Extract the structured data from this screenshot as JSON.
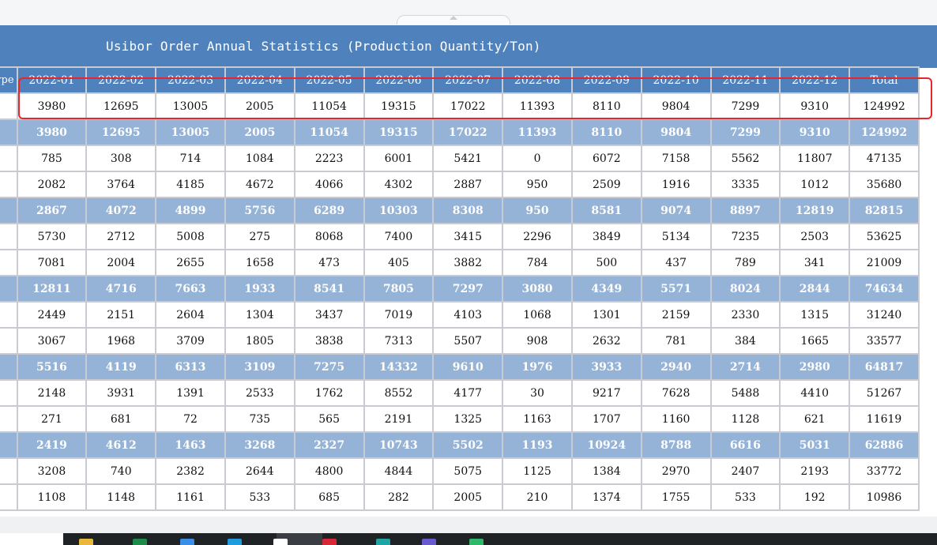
{
  "report": {
    "title": "Usibor Order Annual Statistics (Production Quantity/Ton)",
    "type_header": "Type",
    "months": [
      "2022-01",
      "2022-02",
      "2022-03",
      "2022-04",
      "2022-05",
      "2022-06",
      "2022-07",
      "2022-08",
      "2022-09",
      "2022-10",
      "2022-11",
      "2022-12"
    ],
    "total_header": "Total",
    "rows": [
      {
        "kind": "plain",
        "cells": [
          "3980",
          "12695",
          "13005",
          "2005",
          "11054",
          "19315",
          "17022",
          "11393",
          "8110",
          "9804",
          "7299",
          "9310",
          "124992"
        ]
      },
      {
        "kind": "sub",
        "cells": [
          "3980",
          "12695",
          "13005",
          "2005",
          "11054",
          "19315",
          "17022",
          "11393",
          "8110",
          "9804",
          "7299",
          "9310",
          "124992"
        ]
      },
      {
        "kind": "plain",
        "cells": [
          "785",
          "308",
          "714",
          "1084",
          "2223",
          "6001",
          "5421",
          "0",
          "6072",
          "7158",
          "5562",
          "11807",
          "47135"
        ]
      },
      {
        "kind": "plain",
        "cells": [
          "2082",
          "3764",
          "4185",
          "4672",
          "4066",
          "4302",
          "2887",
          "950",
          "2509",
          "1916",
          "3335",
          "1012",
          "35680"
        ]
      },
      {
        "kind": "sub",
        "cells": [
          "2867",
          "4072",
          "4899",
          "5756",
          "6289",
          "10303",
          "8308",
          "950",
          "8581",
          "9074",
          "8897",
          "12819",
          "82815"
        ]
      },
      {
        "kind": "plain",
        "cells": [
          "5730",
          "2712",
          "5008",
          "275",
          "8068",
          "7400",
          "3415",
          "2296",
          "3849",
          "5134",
          "7235",
          "2503",
          "53625"
        ]
      },
      {
        "kind": "plain",
        "cells": [
          "7081",
          "2004",
          "2655",
          "1658",
          "473",
          "405",
          "3882",
          "784",
          "500",
          "437",
          "789",
          "341",
          "21009"
        ]
      },
      {
        "kind": "sub",
        "cells": [
          "12811",
          "4716",
          "7663",
          "1933",
          "8541",
          "7805",
          "7297",
          "3080",
          "4349",
          "5571",
          "8024",
          "2844",
          "74634"
        ]
      },
      {
        "kind": "plain",
        "cells": [
          "2449",
          "2151",
          "2604",
          "1304",
          "3437",
          "7019",
          "4103",
          "1068",
          "1301",
          "2159",
          "2330",
          "1315",
          "31240"
        ]
      },
      {
        "kind": "plain",
        "cells": [
          "3067",
          "1968",
          "3709",
          "1805",
          "3838",
          "7313",
          "5507",
          "908",
          "2632",
          "781",
          "384",
          "1665",
          "33577"
        ]
      },
      {
        "kind": "sub",
        "cells": [
          "5516",
          "4119",
          "6313",
          "3109",
          "7275",
          "14332",
          "9610",
          "1976",
          "3933",
          "2940",
          "2714",
          "2980",
          "64817"
        ]
      },
      {
        "kind": "plain",
        "cells": [
          "2148",
          "3931",
          "1391",
          "2533",
          "1762",
          "8552",
          "4177",
          "30",
          "9217",
          "7628",
          "5488",
          "4410",
          "51267"
        ]
      },
      {
        "kind": "plain",
        "cells": [
          "271",
          "681",
          "72",
          "735",
          "565",
          "2191",
          "1325",
          "1163",
          "1707",
          "1160",
          "1128",
          "621",
          "11619"
        ]
      },
      {
        "kind": "sub",
        "cells": [
          "2419",
          "4612",
          "1463",
          "3268",
          "2327",
          "10743",
          "5502",
          "1193",
          "10924",
          "8788",
          "6616",
          "5031",
          "62886"
        ]
      },
      {
        "kind": "plain",
        "cells": [
          "3208",
          "740",
          "2382",
          "2644",
          "4800",
          "4844",
          "5075",
          "1125",
          "1384",
          "2970",
          "2407",
          "2193",
          "33772"
        ]
      },
      {
        "kind": "plain",
        "cells": [
          "1108",
          "1148",
          "1161",
          "533",
          "685",
          "282",
          "2005",
          "210",
          "1374",
          "1755",
          "533",
          "192",
          "10986"
        ]
      }
    ]
  },
  "colors": {
    "header_blue": "#4f81bd",
    "subtotal_blue": "#95b3d7",
    "highlight_red": "#e5262a"
  },
  "taskbar_icons": [
    "folder-icon",
    "excel-icon",
    "app-icon",
    "edge-icon",
    "chrome-icon",
    "app-red-icon",
    "app-teal-icon",
    "app-purple-icon",
    "app-green-icon"
  ]
}
